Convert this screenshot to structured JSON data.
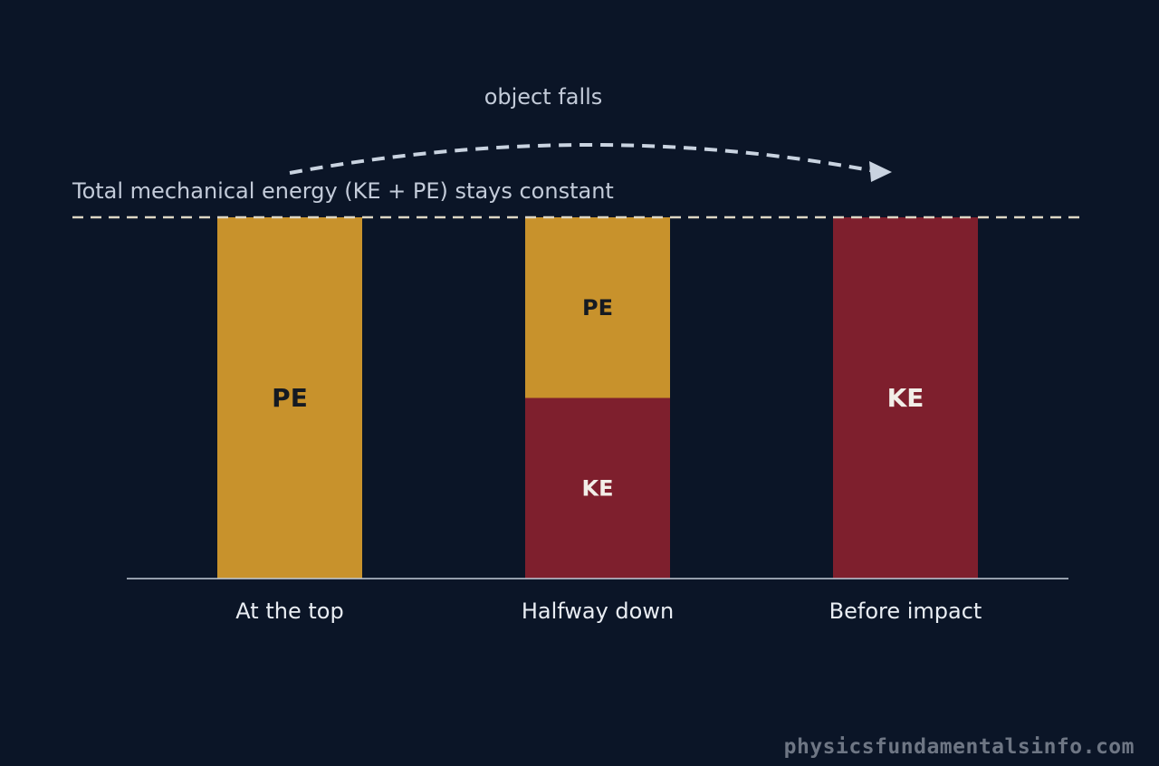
{
  "chart_data": {
    "type": "bar",
    "stacked": true,
    "categories": [
      "At the top",
      "Halfway down",
      "Before impact"
    ],
    "series": [
      {
        "key": "KE",
        "values": [
          0,
          0.5,
          1
        ],
        "color": "#7e1f2d",
        "label_color": "#f2eee8"
      },
      {
        "key": "PE",
        "values": [
          1,
          0.5,
          0
        ],
        "color": "#c8922c",
        "label_color": "#151a22"
      }
    ],
    "segment_labels": {
      "PE": "PE",
      "KE": "KE"
    },
    "ylim": [
      0,
      1
    ],
    "annotations": {
      "total_energy_line": "Total mechanical energy (KE + PE) stays constant",
      "arrow_label": "object falls"
    },
    "colors": {
      "background": "#0b1527",
      "total_line": "#ddd6c4",
      "axis": "#c3cbd9",
      "arrow": "#c9d3e0"
    },
    "grid": false
  },
  "watermark": "physicsfundamentalsinfo.com"
}
